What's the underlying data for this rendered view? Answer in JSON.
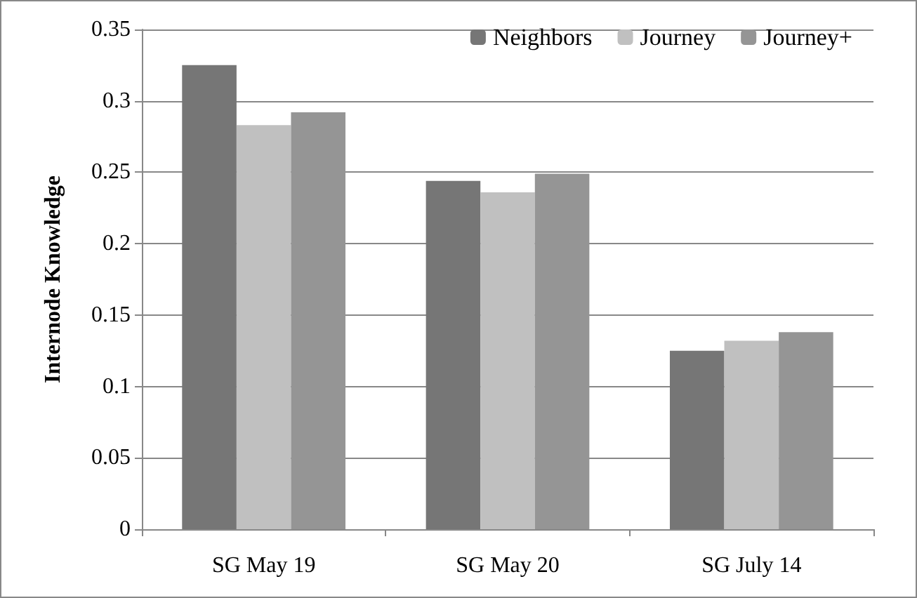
{
  "chart_data": {
    "type": "bar",
    "ylabel": "Internode Knowledge",
    "categories": [
      "SG May 19",
      "SG May 20",
      "SG July 14"
    ],
    "series": [
      {
        "name": "Neighbors",
        "color": "#767676",
        "values": [
          0.325,
          0.244,
          0.125
        ]
      },
      {
        "name": "Journey",
        "color": "#c0c0c0",
        "values": [
          0.283,
          0.236,
          0.132
        ]
      },
      {
        "name": "Journey+",
        "color": "#959595",
        "values": [
          0.292,
          0.249,
          0.138
        ]
      }
    ],
    "ylim": [
      0,
      0.35
    ],
    "yticks": [
      0,
      0.05,
      0.1,
      0.15,
      0.2,
      0.25,
      0.3,
      0.35
    ],
    "grid": "y",
    "legend": "top right"
  }
}
